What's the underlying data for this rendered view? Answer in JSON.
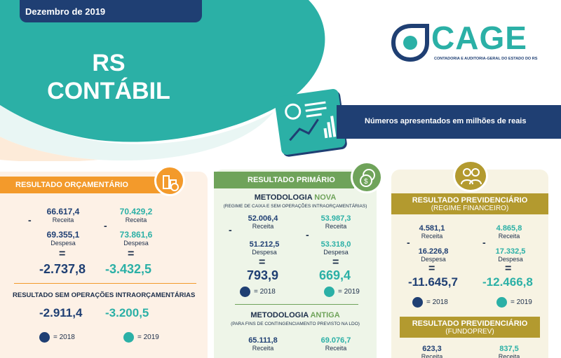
{
  "header": {
    "date": "Dezembro de 2019",
    "title_line1": "RS",
    "title_line2": "CONTÁBIL",
    "logo_text": "CAGE",
    "logo_subtitle": "CONTADORIA E AUDITORIA-GERAL DO ESTADO DO RS",
    "note": "Números apresentados em milhões de reais"
  },
  "colors": {
    "teal": "#2bb0a6",
    "navy": "#1f3f73",
    "orange": "#f39a2b",
    "green": "#6fa35a",
    "gold": "#b39a2f"
  },
  "orcamentario": {
    "title": "RESULTADO ORÇAMENTÁRIO",
    "y2018": {
      "receita": "66.617,4",
      "despesa": "69.355,1",
      "resultado": "-2.737,8"
    },
    "y2019": {
      "receita": "70.429,2",
      "despesa": "73.861,6",
      "resultado": "-3.432,5"
    },
    "receita_label": "Receita",
    "despesa_label": "Despesa",
    "minus": "-",
    "equals": "=",
    "sem_op_title": "RESULTADO SEM OPERAÇÕES INTRAORÇAMENTÁRIAS",
    "sem_op_2018": "-2.911,4",
    "sem_op_2019": "-3.200,5",
    "legend_2018": "= 2018",
    "legend_2019": "= 2019"
  },
  "primario": {
    "title": "RESULTADO PRIMÁRIO",
    "nova_prefix": "METODOLOGIA ",
    "nova_word": "NOVA",
    "nova_sub": "(REGIME DE CAIXA E SEM OPERAÇÕES INTRAORÇAMENTÁRIAS)",
    "nova_2018": {
      "receita": "52.006,4",
      "despesa": "51.212,5",
      "resultado": "793,9"
    },
    "nova_2019": {
      "receita": "53.987,3",
      "despesa": "53.318,0",
      "resultado": "669,4"
    },
    "antiga_prefix": "METODOLOGIA ",
    "antiga_word": "ANTIGA",
    "antiga_sub": "(PARA FINS DE CONTINGENCIAMENTO PREVISTO NA LDO)",
    "antiga_2018": {
      "receita": "65.111,8"
    },
    "antiga_2019": {
      "receita": "69.076,7"
    },
    "receita_label": "Receita",
    "despesa_label": "Despesa",
    "legend_2018": "= 2018",
    "legend_2019": "= 2019"
  },
  "previdenciario": {
    "title1_line1": "RESULTADO PREVIDENCIÁRIO",
    "title1_line2": "(REGIME FINANCEIRO)",
    "fin_2018": {
      "receita": "4.581,1",
      "despesa": "16.226,8",
      "resultado": "-11.645,7"
    },
    "fin_2019": {
      "receita": "4.865,8",
      "despesa": "17.332,5",
      "resultado": "-12.466,8"
    },
    "title2_line1": "RESULTADO PREVIDENCIÁRIO",
    "title2_line2": "(FUNDOPREV)",
    "fund_2018": {
      "receita": "623,3"
    },
    "fund_2019": {
      "receita": "837,5"
    },
    "receita_label": "Receita",
    "despesa_label": "Despesa",
    "legend_2018": "= 2018",
    "legend_2019": "= 2019"
  }
}
